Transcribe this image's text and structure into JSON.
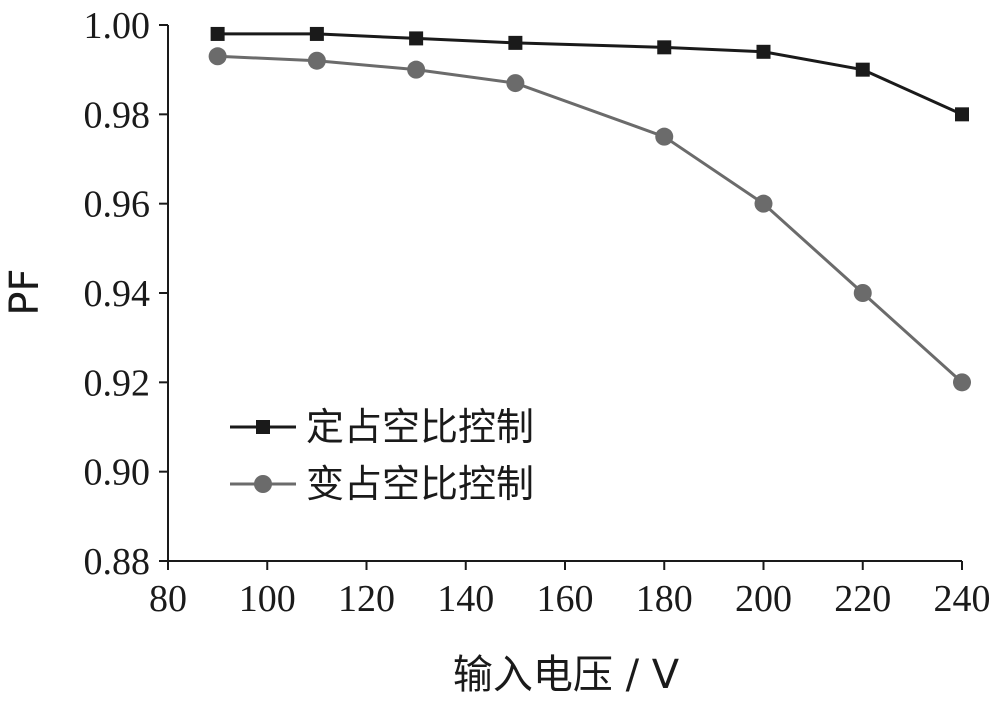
{
  "chart_data": {
    "type": "line",
    "xlabel": "输入电压 / V",
    "ylabel": "PF",
    "xlim": [
      80,
      240
    ],
    "ylim": [
      0.88,
      1.0
    ],
    "x_ticks": [
      "80",
      "100",
      "120",
      "140",
      "160",
      "180",
      "200",
      "220",
      "240"
    ],
    "y_ticks": [
      "0.88",
      "0.90",
      "0.92",
      "0.94",
      "0.96",
      "0.98",
      "1.00"
    ],
    "grid": false,
    "legend_position": "bottom-left",
    "series": [
      {
        "name": "定占空比控制",
        "marker": "square",
        "color": "#1a1a1a",
        "x": [
          90,
          110,
          130,
          150,
          180,
          200,
          220,
          240
        ],
        "y": [
          0.998,
          0.998,
          0.997,
          0.996,
          0.995,
          0.994,
          0.99,
          0.98
        ]
      },
      {
        "name": "变占空比控制",
        "marker": "circle",
        "color": "#6b6b6b",
        "x": [
          90,
          110,
          130,
          150,
          180,
          200,
          220,
          240
        ],
        "y": [
          0.993,
          0.992,
          0.99,
          0.987,
          0.975,
          0.96,
          0.94,
          0.92
        ]
      }
    ]
  }
}
